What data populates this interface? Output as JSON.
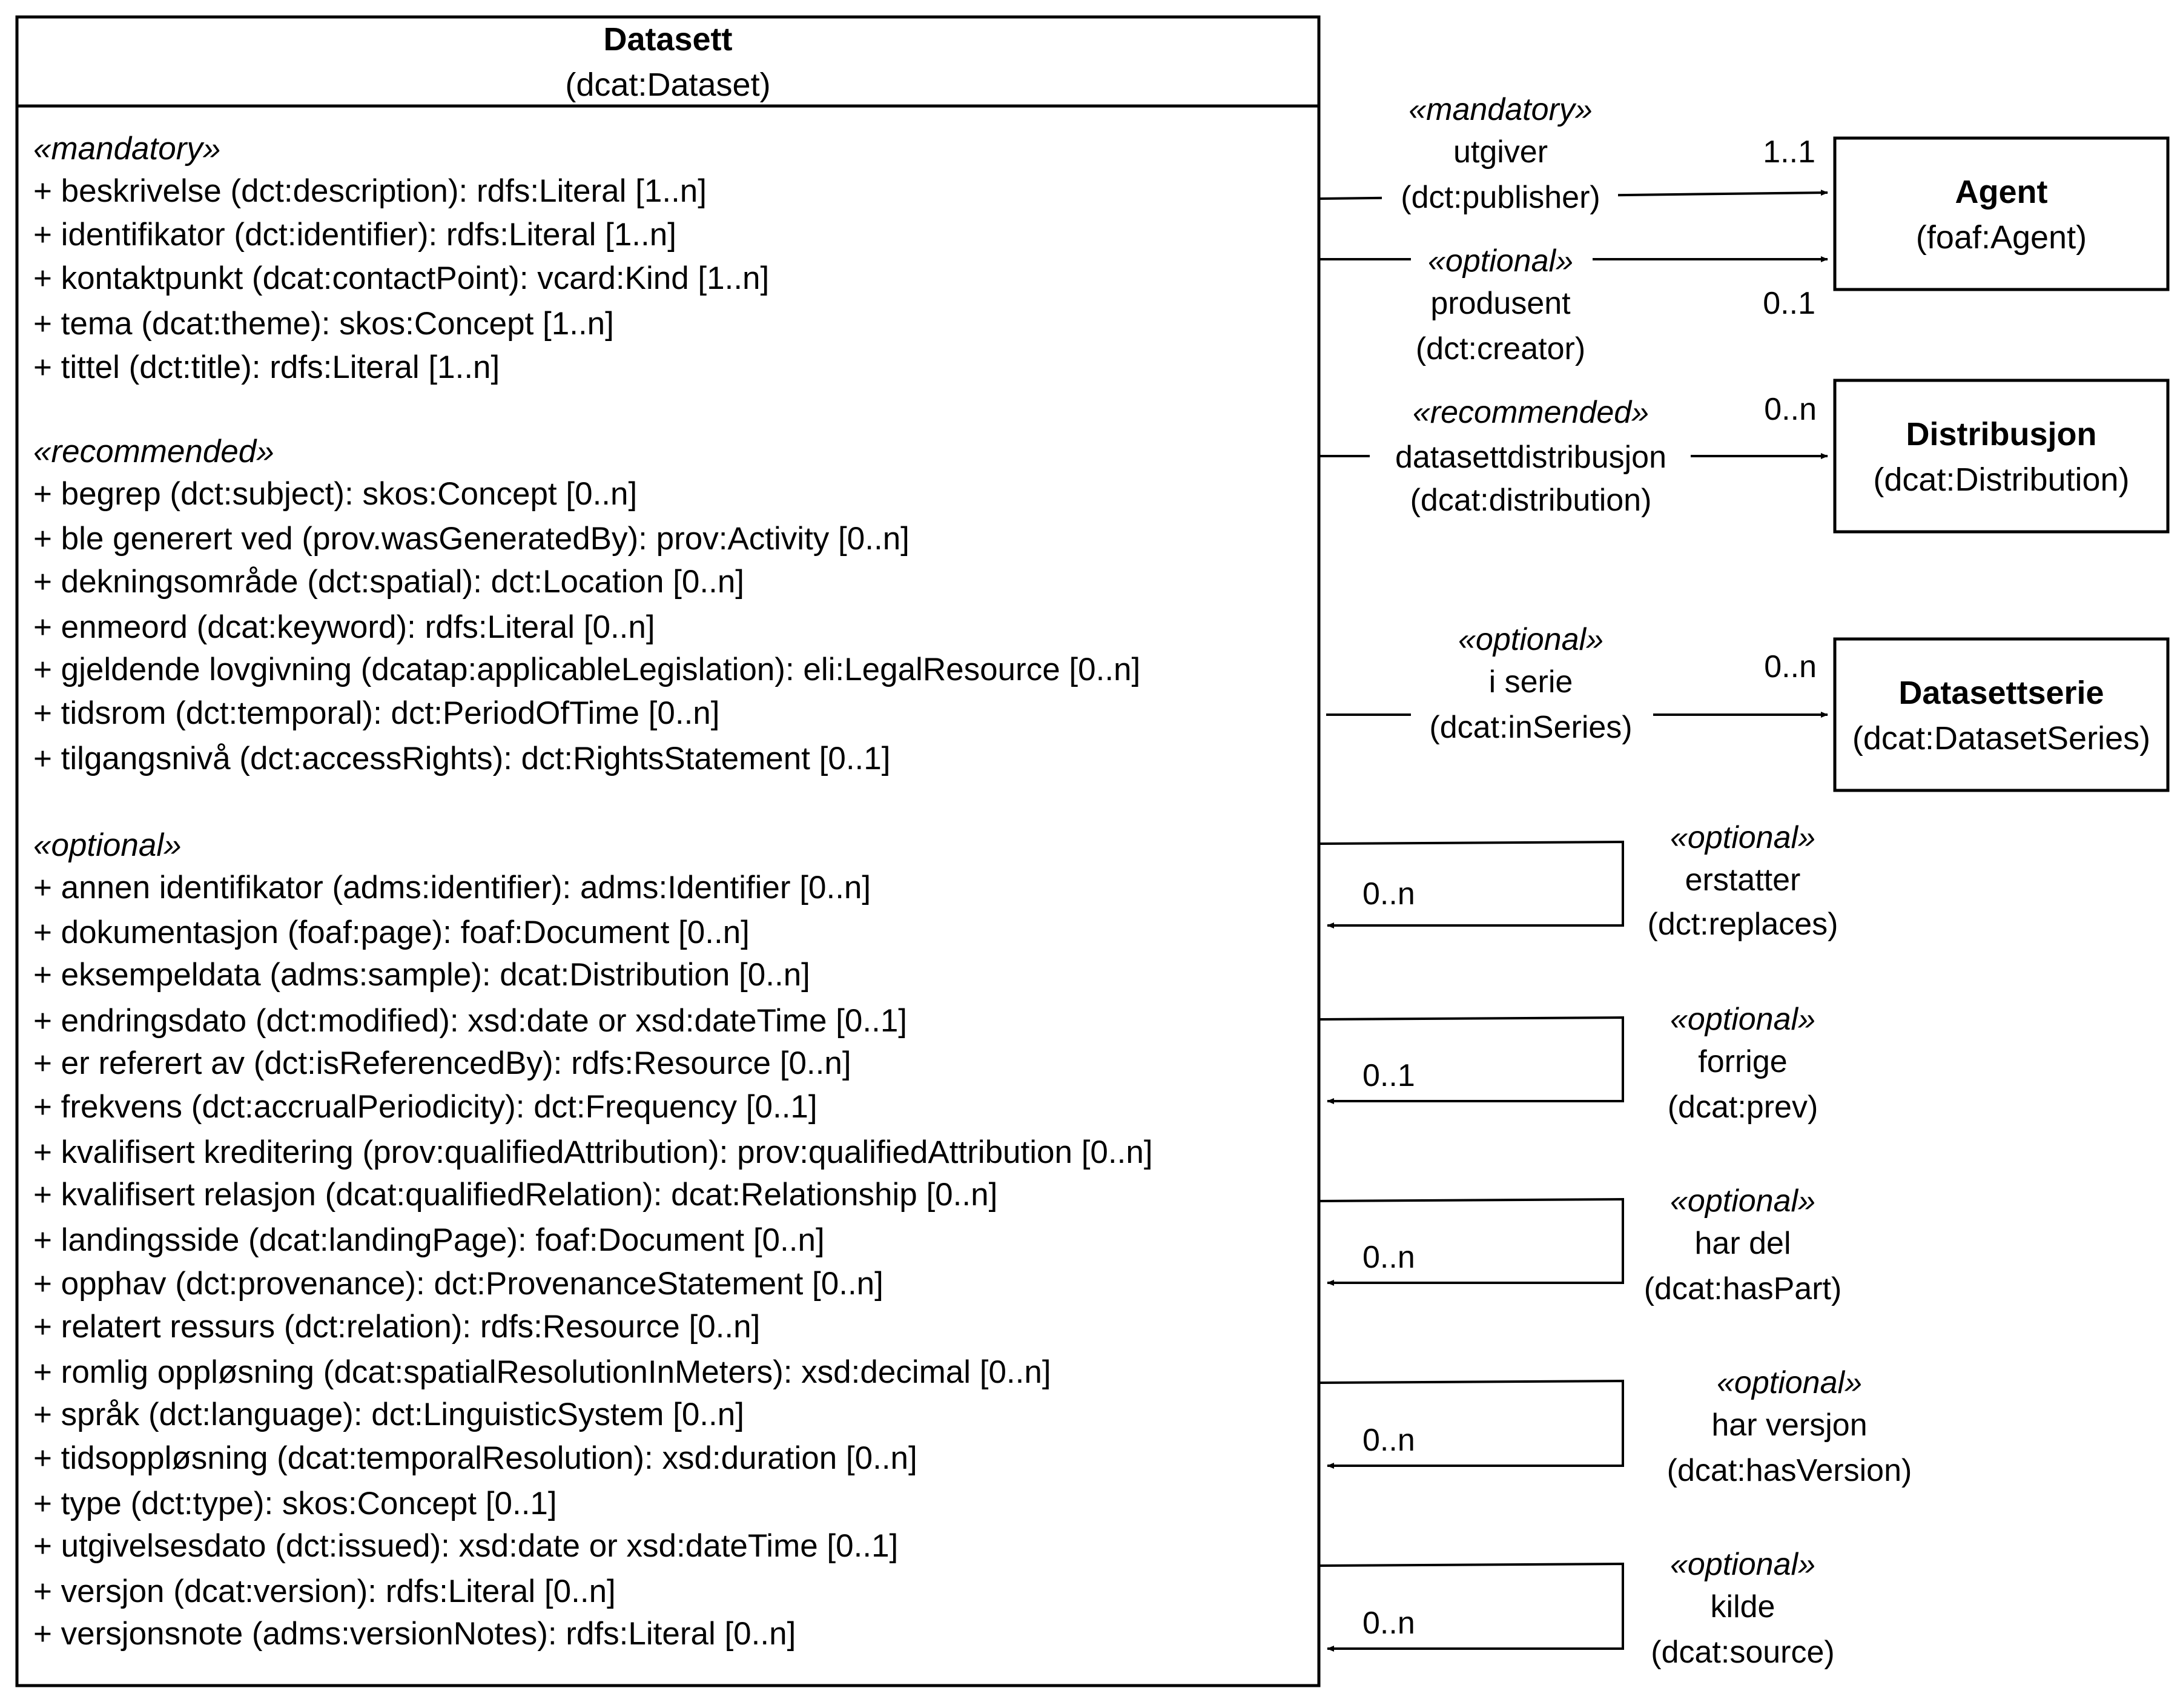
{
  "main_class": {
    "name": "Datasett",
    "uri": "(dcat:Dataset)",
    "sections": [
      {
        "stereotype": "«mandatory»",
        "attributes": [
          "+ beskrivelse (dct:description): rdfs:Literal [1..n]",
          "+ identifikator (dct:identifier): rdfs:Literal [1..n]",
          "+ kontaktpunkt (dcat:contactPoint): vcard:Kind [1..n]",
          "+ tema (dcat:theme): skos:Concept [1..n]",
          "+ tittel (dct:title): rdfs:Literal [1..n]"
        ]
      },
      {
        "stereotype": "«recommended»",
        "attributes": [
          "+ begrep (dct:subject): skos:Concept [0..n]",
          "+ ble generert ved (prov.wasGeneratedBy): prov:Activity [0..n]",
          "+ dekningsområde (dct:spatial): dct:Location [0..n]",
          "+ enmeord (dcat:keyword): rdfs:Literal [0..n]",
          "+ gjeldende lovgivning (dcatap:applicableLegislation): eli:LegalResource [0..n]",
          "+ tidsrom (dct:temporal): dct:PeriodOfTime [0..n]",
          "+ tilgangsnivå (dct:accessRights): dct:RightsStatement [0..1]"
        ]
      },
      {
        "stereotype": "«optional»",
        "attributes": [
          "+ annen identifikator (adms:identifier): adms:Identifier [0..n]",
          "+ dokumentasjon (foaf:page): foaf:Document [0..n]",
          "+ eksempeldata (adms:sample): dcat:Distribution [0..n]",
          "+ endringsdato (dct:modified): xsd:date or xsd:dateTime [0..1]",
          "+ er referert av (dct:isReferencedBy): rdfs:Resource [0..n]",
          "+ frekvens (dct:accrualPeriodicity): dct:Frequency [0..1]",
          "+ kvalifisert kreditering (prov:qualifiedAttribution): prov:qualifiedAttribution [0..n]",
          "+ kvalifisert relasjon (dcat:qualifiedRelation): dcat:Relationship [0..n]",
          "+ landingsside (dcat:landingPage): foaf:Document [0..n]",
          "+ opphav (dct:provenance): dct:ProvenanceStatement [0..n]",
          "+ relatert ressurs (dct:relation): rdfs:Resource [0..n]",
          "+ romlig oppløsning (dcat:spatialResolutionInMeters): xsd:decimal [0..n]",
          "+ språk (dct:language): dct:LinguisticSystem [0..n]",
          "+ tidsoppløsning (dcat:temporalResolution): xsd:duration [0..n]",
          "+ type (dct:type): skos:Concept [0..1]",
          "+ utgivelsesdato (dct:issued): xsd:date or xsd:dateTime [0..1]",
          "+ versjon (dcat:version): rdfs:Literal [0..n]",
          "+ versjonsnote (adms:versionNotes): rdfs:Literal [0..n]"
        ]
      }
    ]
  },
  "target_classes": {
    "agent": {
      "name": "Agent",
      "uri": "(foaf:Agent)"
    },
    "distribution": {
      "name": "Distribusjon",
      "uri": "(dcat:Distribution)"
    },
    "series": {
      "name": "Datasettserie",
      "uri": "(dcat:DatasetSeries)"
    }
  },
  "associations": {
    "publisher": {
      "stereotype": "«mandatory»",
      "name": "utgiver",
      "uri": "(dct:publisher)",
      "multiplicity": "1..1"
    },
    "creator": {
      "stereotype": "«optional»",
      "name": "produsent",
      "uri": "(dct:creator)",
      "multiplicity": "0..1"
    },
    "distribution": {
      "stereotype": "«recommended»",
      "name": "datasettdistribusjon",
      "uri": "(dcat:distribution)",
      "multiplicity": "0..n"
    },
    "in_series": {
      "stereotype": "«optional»",
      "name": "i serie",
      "uri": "(dcat:inSeries)",
      "multiplicity": "0..n"
    }
  },
  "self_associations": [
    {
      "stereotype": "«optional»",
      "name": "erstatter",
      "uri": "(dct:replaces)",
      "multiplicity": "0..n"
    },
    {
      "stereotype": "«optional»",
      "name": "forrige",
      "uri": "(dcat:prev)",
      "multiplicity": "0..1"
    },
    {
      "stereotype": "«optional»",
      "name": "har del",
      "uri": "(dcat:hasPart)",
      "multiplicity": "0..n"
    },
    {
      "stereotype": "«optional»",
      "name": "har versjon",
      "uri": "(dcat:hasVersion)",
      "multiplicity": "0..n"
    },
    {
      "stereotype": "«optional»",
      "name": "kilde",
      "uri": "(dcat:source)",
      "multiplicity": "0..n"
    }
  ]
}
